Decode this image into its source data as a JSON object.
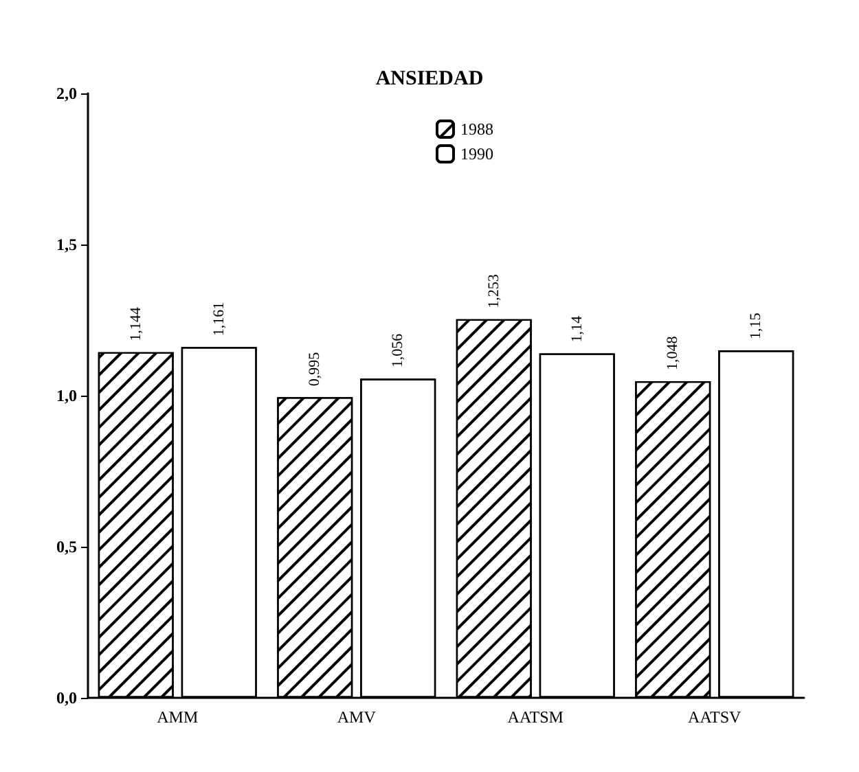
{
  "chart_data": {
    "type": "bar",
    "title": "ANSIEDAD",
    "categories": [
      "AMM",
      "AMV",
      "AATSM",
      "AATSV"
    ],
    "series": [
      {
        "name": "1988",
        "color": "#ffffff",
        "values": [
          1.144,
          0.995,
          1.253,
          1.048
        ],
        "value_labels": [
          "1,144",
          "0,995",
          "1,253",
          "1,048"
        ]
      },
      {
        "name": "1990",
        "color": "#ffffff",
        "values": [
          1.161,
          1.056,
          1.14,
          1.15
        ],
        "value_labels": [
          "1,161",
          "1,056",
          "1,14",
          "1,15"
        ]
      }
    ],
    "ylim": [
      0,
      2
    ],
    "yticks": [
      {
        "value": 0,
        "label": "0,0"
      },
      {
        "value": 0.5,
        "label": "0,5"
      },
      {
        "value": 1,
        "label": "1,0"
      },
      {
        "value": 1.5,
        "label": "1,5"
      },
      {
        "value": 2,
        "label": "2,0"
      }
    ],
    "grid": false,
    "legend": "top"
  }
}
